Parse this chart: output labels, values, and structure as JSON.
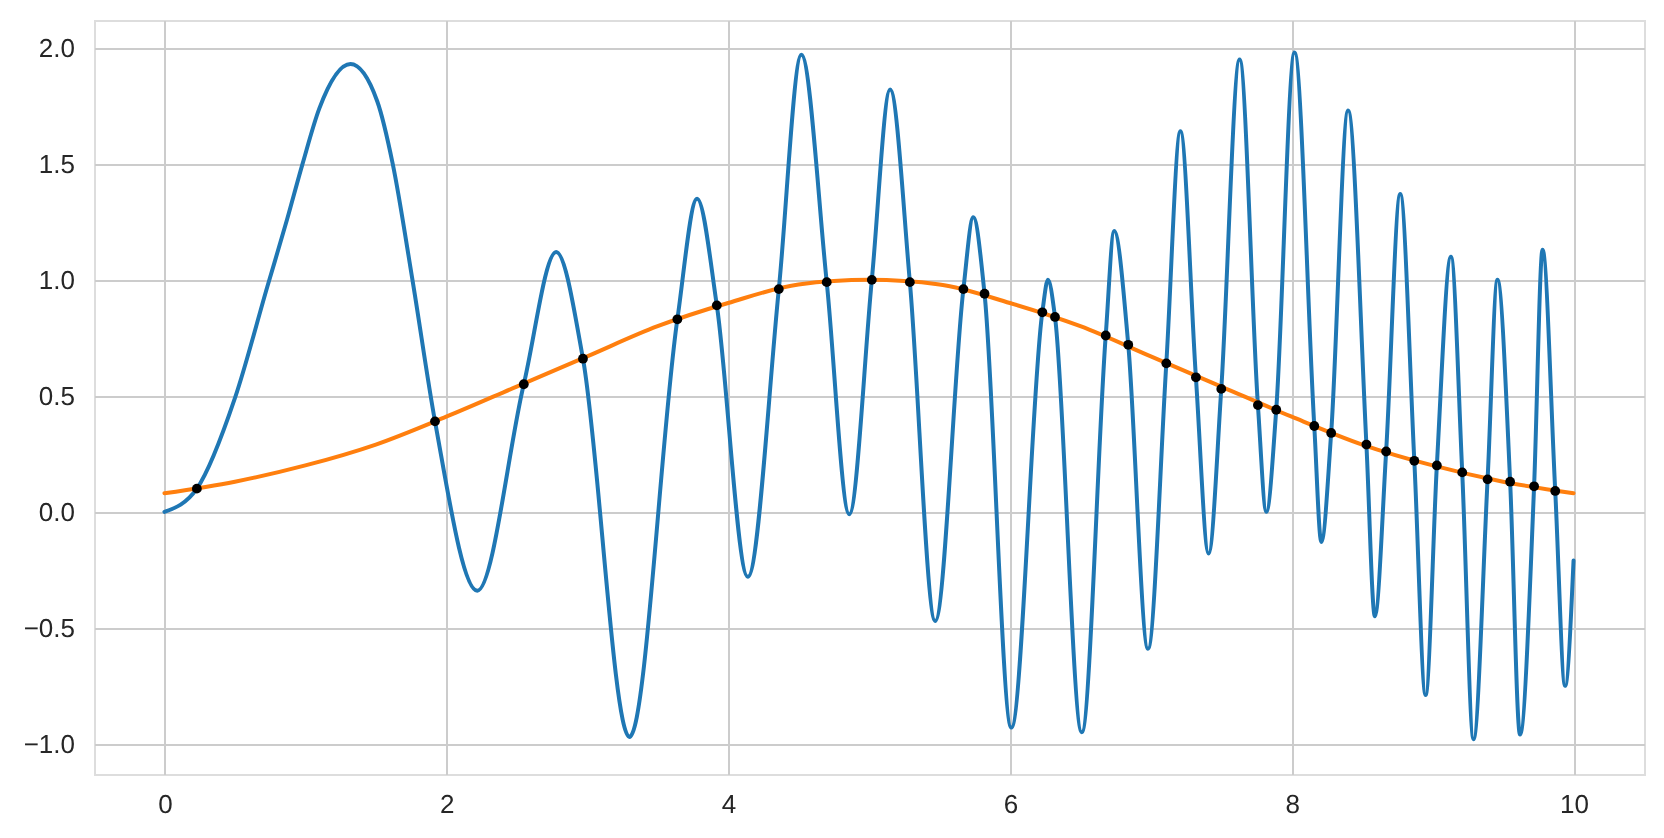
{
  "chart_data": {
    "type": "line",
    "xlim": [
      -0.5,
      10.5
    ],
    "ylim": [
      -1.13,
      2.12
    ],
    "xticks": [
      0,
      2,
      4,
      6,
      8,
      10
    ],
    "yticks": [
      {
        "value": -1,
        "label": "−1.0"
      },
      {
        "value": -0.5,
        "label": "−0.5"
      },
      {
        "value": 0,
        "label": "0.0"
      },
      {
        "value": 0.5,
        "label": "0.5"
      },
      {
        "value": 1,
        "label": "1.0"
      },
      {
        "value": 1.5,
        "label": "1.5"
      },
      {
        "value": 2,
        "label": "2.0"
      }
    ],
    "grid": true,
    "series": [
      {
        "type": "line",
        "color": "#1f77b4",
        "x": [
          0,
          0.23,
          0.5,
          0.73,
          0.87,
          0.98,
          1.1,
          1.32,
          1.51,
          1.62,
          1.76,
          1.92,
          2.22,
          2.55,
          2.78,
          2.97,
          3.3,
          3.64,
          3.78,
          3.92,
          4.14,
          4.36,
          4.52,
          4.7,
          4.86,
          5.02,
          5.15,
          5.29,
          5.47,
          5.67,
          5.74,
          5.82,
          6.01,
          6.23,
          6.27,
          6.32,
          6.51,
          6.68,
          6.74,
          6.84,
          6.98,
          7.11,
          7.21,
          7.32,
          7.41,
          7.5,
          7.63,
          7.76,
          7.82,
          7.89,
          8.02,
          8.16,
          8.21,
          8.28,
          8.4,
          8.53,
          8.59,
          8.67,
          8.77,
          8.87,
          8.95,
          9.03,
          9.13,
          9.21,
          9.29,
          9.39,
          9.46,
          9.55,
          9.62,
          9.72,
          9.78,
          9.87,
          9.94,
          10.0
        ],
        "values": [
          0.0,
          0.1,
          0.49,
          0.97,
          1.26,
          1.5,
          1.74,
          1.93,
          1.77,
          1.5,
          1.0,
          0.39,
          -0.34,
          0.55,
          1.12,
          0.66,
          -0.97,
          0.83,
          1.35,
          0.89,
          -0.28,
          0.96,
          1.97,
          0.99,
          -0.01,
          1.0,
          1.82,
          0.99,
          -0.47,
          0.96,
          1.27,
          0.94,
          -0.93,
          0.86,
          1.0,
          0.84,
          -0.95,
          0.76,
          1.21,
          0.72,
          -0.59,
          0.64,
          1.64,
          0.58,
          -0.18,
          0.53,
          1.95,
          0.46,
          0.0,
          0.44,
          1.98,
          0.37,
          -0.13,
          0.34,
          1.73,
          0.29,
          -0.45,
          0.26,
          1.37,
          0.22,
          -0.79,
          0.2,
          1.1,
          0.17,
          -0.98,
          0.14,
          1.0,
          0.13,
          -0.96,
          0.11,
          1.13,
          0.09,
          -0.75,
          -0.21
        ]
      },
      {
        "type": "line",
        "color": "#ff7f0e",
        "x": [
          0,
          0.5,
          1,
          1.5,
          2,
          2.5,
          3,
          3.5,
          4,
          4.5,
          5,
          5.5,
          6,
          6.5,
          7,
          7.5,
          8,
          8.5,
          9,
          9.5,
          10
        ],
        "values": [
          0.08,
          0.13,
          0.2,
          0.29,
          0.41,
          0.54,
          0.67,
          0.8,
          0.9,
          0.98,
          1.0,
          0.98,
          0.9,
          0.8,
          0.67,
          0.54,
          0.41,
          0.29,
          0.2,
          0.13,
          0.08
        ]
      },
      {
        "type": "scatter",
        "color": "#000000",
        "marker": "circle",
        "x": [
          0.23,
          1.92,
          2.55,
          2.97,
          3.64,
          3.92,
          4.36,
          4.7,
          5.02,
          5.29,
          5.67,
          5.82,
          6.23,
          6.32,
          6.68,
          6.84,
          7.11,
          7.32,
          7.5,
          7.76,
          7.89,
          8.16,
          8.28,
          8.53,
          8.67,
          8.87,
          9.03,
          9.21,
          9.39,
          9.55,
          9.72,
          9.87
        ],
        "values": [
          0.1,
          0.39,
          0.55,
          0.66,
          0.83,
          0.89,
          0.96,
          0.99,
          1.0,
          0.99,
          0.96,
          0.94,
          0.86,
          0.84,
          0.76,
          0.72,
          0.64,
          0.58,
          0.53,
          0.46,
          0.44,
          0.37,
          0.34,
          0.29,
          0.26,
          0.22,
          0.2,
          0.17,
          0.14,
          0.13,
          0.11,
          0.09
        ]
      }
    ]
  }
}
